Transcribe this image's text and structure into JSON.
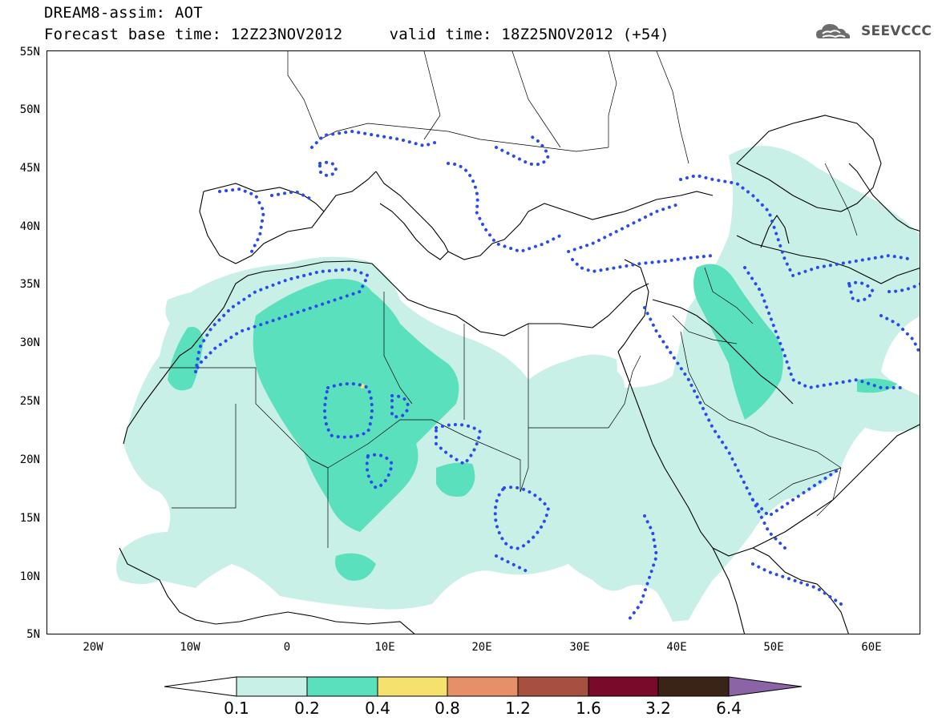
{
  "title": {
    "line1": "DREAM8-assim: AOT",
    "line2": "Forecast base time: 12Z23NOV2012     valid time: 18Z25NOV2012 (+54)"
  },
  "logo": {
    "text": "SEEVCCC",
    "icon": "cloud-icon"
  },
  "map": {
    "lat_labels": [
      "55N",
      "50N",
      "45N",
      "40N",
      "35N",
      "30N",
      "25N",
      "20N",
      "15N",
      "10N",
      "5N"
    ],
    "lon_labels": [
      "20W",
      "10W",
      "0",
      "10E",
      "20E",
      "30E",
      "40E",
      "50E",
      "60E"
    ],
    "colors": {
      "level_0_1": "#c8f0e6",
      "level_0_2": "#5ae0bd",
      "level_0_4": "#f5e26e",
      "contour": "#2a4bea",
      "coast": "#000000"
    }
  },
  "legend": {
    "levels": [
      "0.1",
      "0.2",
      "0.4",
      "0.8",
      "1.2",
      "1.6",
      "3.2",
      "6.4"
    ],
    "colors": [
      "#ffffff",
      "#c8f0e6",
      "#5ae0bd",
      "#f5e26e",
      "#e6906a",
      "#a85040",
      "#7a0a2a",
      "#3a2418",
      "#8a64a4"
    ]
  }
}
